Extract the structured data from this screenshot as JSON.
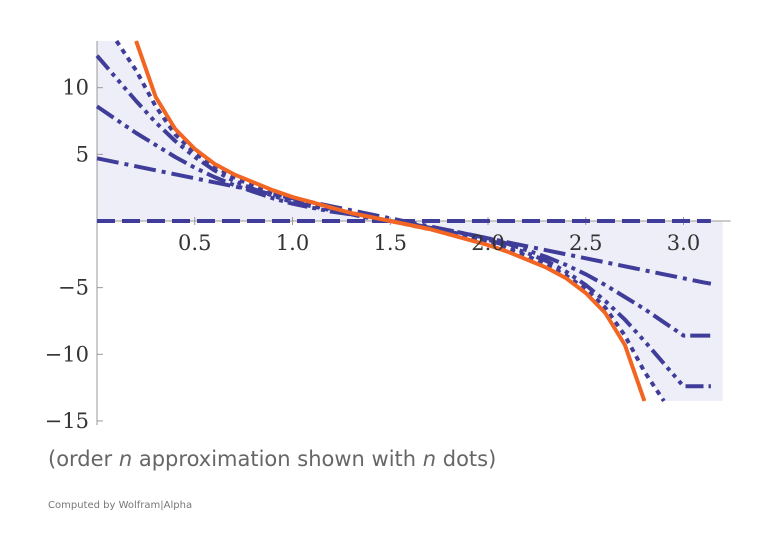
{
  "caption": {
    "prefix": "(order ",
    "var1": "n",
    "middle": " approximation shown with ",
    "var2": "n",
    "suffix": " dots)"
  },
  "credit": "Computed by Wolfram|Alpha",
  "colors": {
    "function": "#f26522",
    "approximation": "#3f3d99",
    "fill": "#eeeef8",
    "axis": "#999999"
  },
  "chart_data": {
    "type": "line",
    "title": "",
    "xlabel": "",
    "ylabel": "",
    "xlim": [
      0,
      3.2
    ],
    "ylim": [
      -15,
      13.5
    ],
    "xticks": [
      {
        "value": 0.5,
        "label": "0.5"
      },
      {
        "value": 1.0,
        "label": "1.0"
      },
      {
        "value": 1.5,
        "label": "1.5"
      },
      {
        "value": 2.0,
        "label": "2.0"
      },
      {
        "value": 2.5,
        "label": "2.5"
      },
      {
        "value": 3.0,
        "label": "3.0"
      }
    ],
    "yticks": [
      {
        "value": 10,
        "label": "10"
      },
      {
        "value": 5,
        "label": "5"
      },
      {
        "value": -5,
        "label": "−5"
      },
      {
        "value": -10,
        "label": "−10"
      },
      {
        "value": -15,
        "label": "−15"
      }
    ],
    "grid": false,
    "legend": "none",
    "x": [
      0.0,
      0.1,
      0.2,
      0.3,
      0.4,
      0.5,
      0.6,
      0.7,
      0.8,
      0.9,
      1.0,
      1.1,
      1.2,
      1.3,
      1.4,
      1.5,
      1.6,
      1.7,
      1.8,
      1.9,
      2.0,
      2.1,
      2.2,
      2.3,
      2.4,
      2.5,
      2.6,
      2.7,
      2.8,
      2.9,
      3.0,
      3.1,
      3.14
    ],
    "series": [
      {
        "style": "solid",
        "values": [
          null,
          null,
          13.5,
          9.3,
          6.9,
          5.4,
          4.3,
          3.5,
          2.9,
          2.3,
          1.8,
          1.4,
          1.0,
          0.6,
          0.3,
          0.0,
          -0.3,
          -0.6,
          -1.0,
          -1.4,
          -1.8,
          -2.3,
          -2.9,
          -3.5,
          -4.3,
          -5.4,
          -6.9,
          -9.3,
          -13.5,
          null,
          null,
          null,
          null
        ]
      },
      {
        "style": "dashed",
        "values": [
          0.0,
          0.0,
          0.0,
          0.0,
          0.0,
          0.0,
          0.0,
          0.0,
          0.0,
          0.0,
          0.0,
          0.0,
          0.0,
          0.0,
          0.0,
          0.0,
          0.0,
          0.0,
          0.0,
          0.0,
          0.0,
          0.0,
          0.0,
          0.0,
          0.0,
          0.0,
          0.0,
          0.0,
          0.0,
          0.0,
          0.0,
          0.0,
          0.0
        ]
      },
      {
        "style": "dash-dot",
        "values": [
          4.7,
          4.4,
          4.1,
          3.8,
          3.5,
          3.2,
          2.9,
          2.6,
          2.3,
          2.0,
          1.7,
          1.4,
          1.1,
          0.8,
          0.5,
          0.2,
          -0.1,
          -0.4,
          -0.7,
          -1.0,
          -1.3,
          -1.6,
          -1.9,
          -2.2,
          -2.5,
          -2.8,
          -3.1,
          -3.4,
          -3.7,
          -4.0,
          -4.3,
          -4.6,
          -4.7
        ]
      },
      {
        "style": "dash-dot-dot",
        "values": [
          8.6,
          7.6,
          6.6,
          5.7,
          4.8,
          4.0,
          3.3,
          2.7,
          2.2,
          1.7,
          1.3,
          1.0,
          0.7,
          0.5,
          0.2,
          0.0,
          -0.2,
          -0.5,
          -0.7,
          -1.0,
          -1.3,
          -1.7,
          -2.2,
          -2.7,
          -3.3,
          -4.0,
          -4.8,
          -5.7,
          -6.6,
          -7.6,
          -8.6,
          -8.6,
          -8.6
        ]
      },
      {
        "style": "dash-dot-dot-dot",
        "values": [
          12.4,
          10.7,
          9.0,
          7.4,
          6.0,
          4.8,
          3.8,
          3.0,
          2.4,
          1.9,
          1.4,
          1.1,
          0.8,
          0.5,
          0.2,
          0.0,
          -0.2,
          -0.5,
          -0.8,
          -1.1,
          -1.4,
          -1.9,
          -2.4,
          -3.0,
          -3.8,
          -4.8,
          -6.0,
          -7.4,
          -9.0,
          -10.7,
          -12.4,
          -12.4,
          -12.4
        ]
      },
      {
        "style": "dotted",
        "values": [
          null,
          13.5,
          11.3,
          8.6,
          6.5,
          5.1,
          4.1,
          3.3,
          2.6,
          2.1,
          1.6,
          1.2,
          0.9,
          0.6,
          0.3,
          0.0,
          -0.3,
          -0.6,
          -0.9,
          -1.2,
          -1.6,
          -2.1,
          -2.6,
          -3.3,
          -4.1,
          -5.1,
          -6.5,
          -8.6,
          -11.3,
          -13.5,
          null,
          null,
          null
        ]
      }
    ]
  }
}
